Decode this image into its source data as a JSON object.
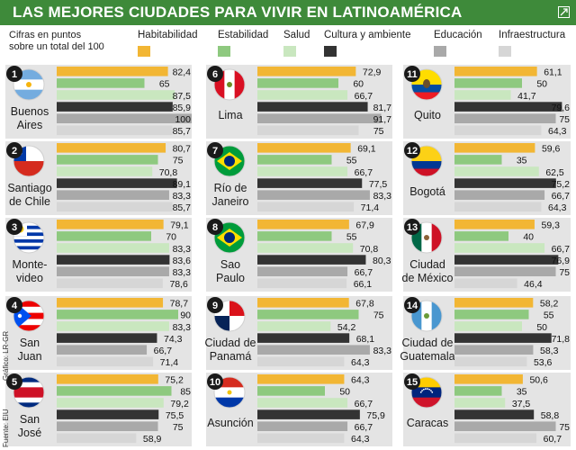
{
  "title": "LAS MEJORES CIUDADES PARA VIVIR EN LATINOAMÉRICA",
  "note": [
    "Cifras en puntos",
    "sobre un total del 100"
  ],
  "credit": "Gráfico: LR-GR",
  "source": "Fuente: EIU",
  "icons": {
    "share": "share-icon"
  },
  "colors": {
    "title_bg": "#3e8a3a",
    "panel_bg": "#e4e4e4",
    "series": [
      "#f2b634",
      "#8ec97f",
      "#c9e7bf",
      "#333333",
      "#a9a9a9",
      "#d6d6d6"
    ]
  },
  "chart_data": {
    "type": "bar",
    "series_names": [
      "Habitabilidad",
      "Estabilidad",
      "Salud",
      "Cultura y ambiente",
      "Educación",
      "Infraestructura"
    ],
    "xlim": [
      0,
      100
    ],
    "cities": [
      {
        "rank": "1",
        "name": [
          "Buenos",
          "Aires"
        ],
        "flag": "argentina",
        "values": [
          82.4,
          65,
          87.5,
          85.9,
          100,
          85.7
        ]
      },
      {
        "rank": "2",
        "name": [
          "Santiago",
          "de Chile"
        ],
        "flag": "chile",
        "values": [
          80.7,
          75,
          70.8,
          89.1,
          83.3,
          85.7
        ]
      },
      {
        "rank": "3",
        "name": [
          "Monte-",
          "video"
        ],
        "flag": "uruguay",
        "values": [
          79.1,
          70,
          83.3,
          83.6,
          83.3,
          78.6
        ]
      },
      {
        "rank": "4",
        "name": [
          "San",
          "Juan"
        ],
        "flag": "puertorico",
        "values": [
          78.7,
          90,
          83.3,
          74.3,
          66.7,
          71.4
        ]
      },
      {
        "rank": "5",
        "name": [
          "San",
          "José"
        ],
        "flag": "costarica",
        "values": [
          75.2,
          85,
          79.2,
          75.5,
          75,
          58.9
        ]
      },
      {
        "rank": "6",
        "name": [
          "Lima"
        ],
        "flag": "peru",
        "values": [
          72.9,
          60,
          66.7,
          81.7,
          91.7,
          75
        ]
      },
      {
        "rank": "7",
        "name": [
          "Río de",
          "Janeiro"
        ],
        "flag": "brazil",
        "values": [
          69.1,
          55,
          66.7,
          77.5,
          83.3,
          71.4
        ]
      },
      {
        "rank": "8",
        "name": [
          "Sao",
          "Paulo"
        ],
        "flag": "brazil",
        "values": [
          67.9,
          55,
          70.8,
          80.3,
          66.7,
          66.1
        ]
      },
      {
        "rank": "9",
        "name": [
          "Ciudad de",
          "Panamá"
        ],
        "flag": "panama",
        "values": [
          67.8,
          75,
          54.2,
          68.1,
          83.3,
          64.3
        ]
      },
      {
        "rank": "10",
        "name": [
          "Asunción"
        ],
        "flag": "paraguay",
        "values": [
          64.3,
          50,
          66.7,
          75.9,
          66.7,
          64.3
        ]
      },
      {
        "rank": "11",
        "name": [
          "Quito"
        ],
        "flag": "ecuador",
        "values": [
          61.1,
          50,
          41.7,
          79.6,
          75,
          64.3
        ]
      },
      {
        "rank": "12",
        "name": [
          "Bogotá"
        ],
        "flag": "colombia",
        "values": [
          59.6,
          35,
          62.5,
          75.2,
          66.7,
          64.3
        ]
      },
      {
        "rank": "13",
        "name": [
          "Ciudad",
          "de México"
        ],
        "flag": "mexico",
        "values": [
          59.3,
          40,
          66.7,
          76.9,
          75,
          46.4
        ]
      },
      {
        "rank": "14",
        "name": [
          "Ciudad de",
          "Guatemala"
        ],
        "flag": "guatemala",
        "values": [
          58.2,
          55,
          50,
          71.8,
          58.3,
          53.6
        ]
      },
      {
        "rank": "15",
        "name": [
          "Caracas"
        ],
        "flag": "venezuela",
        "values": [
          50.6,
          35,
          37.5,
          58.8,
          75,
          60.7
        ]
      }
    ]
  }
}
